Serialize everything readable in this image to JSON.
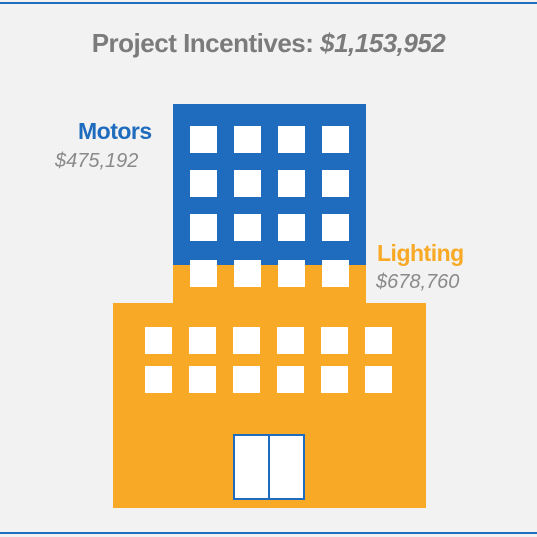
{
  "title": {
    "prefix": "Project Incentives:",
    "amount": "$1,153,952"
  },
  "segments": [
    {
      "label": "Motors",
      "value": "$475,192",
      "color": "#1f6bbd"
    },
    {
      "label": "Lighting",
      "value": "$678,760",
      "color": "#f8a926"
    }
  ]
}
